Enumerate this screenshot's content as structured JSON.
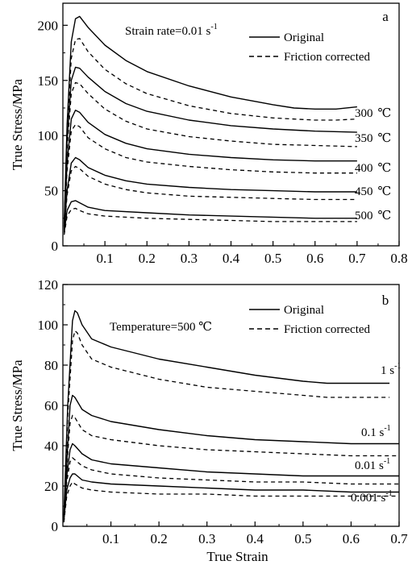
{
  "chart_data": [
    {
      "panel": "a",
      "type": "line",
      "annotation": "Strain rate=0.01 s",
      "annotation_sup": "-1",
      "xlabel": "",
      "ylabel": "True Stress/MPa",
      "xlim": [
        0,
        0.8
      ],
      "ylim": [
        0,
        220
      ],
      "xticks": [
        0.1,
        0.2,
        0.3,
        0.4,
        0.5,
        0.6,
        0.7,
        0.8
      ],
      "yticks": [
        0,
        50,
        100,
        150,
        200
      ],
      "legend": [
        "Original",
        "Friction corrected"
      ],
      "legend_position": "top-right",
      "series": [
        {
          "name": "300 ℃",
          "label": "300",
          "unit": "℃",
          "original": [
            [
              0.003,
              20
            ],
            [
              0.01,
              110
            ],
            [
              0.02,
              185
            ],
            [
              0.03,
              206
            ],
            [
              0.04,
              208
            ],
            [
              0.06,
              198
            ],
            [
              0.1,
              182
            ],
            [
              0.15,
              168
            ],
            [
              0.2,
              158
            ],
            [
              0.3,
              145
            ],
            [
              0.4,
              135
            ],
            [
              0.5,
              128
            ],
            [
              0.55,
              125
            ],
            [
              0.6,
              124
            ],
            [
              0.65,
              124
            ],
            [
              0.7,
              126
            ]
          ],
          "corrected": [
            [
              0.003,
              18
            ],
            [
              0.01,
              100
            ],
            [
              0.02,
              170
            ],
            [
              0.03,
              187
            ],
            [
              0.04,
              188
            ],
            [
              0.06,
              176
            ],
            [
              0.1,
              160
            ],
            [
              0.15,
              147
            ],
            [
              0.2,
              138
            ],
            [
              0.3,
              127
            ],
            [
              0.4,
              120
            ],
            [
              0.5,
              116
            ],
            [
              0.55,
              115
            ],
            [
              0.6,
              114
            ],
            [
              0.65,
              114
            ],
            [
              0.7,
              115
            ]
          ]
        },
        {
          "name": "350 ℃",
          "label": "350",
          "unit": "℃",
          "original": [
            [
              0.003,
              18
            ],
            [
              0.01,
              95
            ],
            [
              0.02,
              150
            ],
            [
              0.03,
              162
            ],
            [
              0.04,
              161
            ],
            [
              0.06,
              153
            ],
            [
              0.1,
              140
            ],
            [
              0.15,
              129
            ],
            [
              0.2,
              122
            ],
            [
              0.3,
              114
            ],
            [
              0.4,
              109
            ],
            [
              0.5,
              106
            ],
            [
              0.6,
              104
            ],
            [
              0.7,
              103
            ]
          ],
          "corrected": [
            [
              0.003,
              16
            ],
            [
              0.01,
              88
            ],
            [
              0.02,
              138
            ],
            [
              0.03,
              148
            ],
            [
              0.04,
              147
            ],
            [
              0.06,
              138
            ],
            [
              0.1,
              124
            ],
            [
              0.15,
              113
            ],
            [
              0.2,
              106
            ],
            [
              0.3,
              99
            ],
            [
              0.4,
              95
            ],
            [
              0.5,
              92
            ],
            [
              0.6,
              91
            ],
            [
              0.7,
              90
            ]
          ]
        },
        {
          "name": "400 ℃",
          "label": "400",
          "unit": "℃",
          "original": [
            [
              0.003,
              17
            ],
            [
              0.01,
              75
            ],
            [
              0.02,
              115
            ],
            [
              0.03,
              123
            ],
            [
              0.04,
              121
            ],
            [
              0.06,
              112
            ],
            [
              0.1,
              101
            ],
            [
              0.15,
              93
            ],
            [
              0.2,
              88
            ],
            [
              0.3,
              83
            ],
            [
              0.4,
              80
            ],
            [
              0.5,
              78
            ],
            [
              0.6,
              77
            ],
            [
              0.7,
              77
            ]
          ],
          "corrected": [
            [
              0.003,
              15
            ],
            [
              0.01,
              68
            ],
            [
              0.02,
              104
            ],
            [
              0.03,
              110
            ],
            [
              0.04,
              108
            ],
            [
              0.06,
              98
            ],
            [
              0.1,
              88
            ],
            [
              0.15,
              80
            ],
            [
              0.2,
              76
            ],
            [
              0.3,
              72
            ],
            [
              0.4,
              69
            ],
            [
              0.5,
              67
            ],
            [
              0.6,
              66
            ],
            [
              0.7,
              66
            ]
          ]
        },
        {
          "name": "450 ℃",
          "label": "450",
          "unit": "℃",
          "original": [
            [
              0.003,
              15
            ],
            [
              0.01,
              50
            ],
            [
              0.02,
              75
            ],
            [
              0.03,
              80
            ],
            [
              0.04,
              78
            ],
            [
              0.06,
              71
            ],
            [
              0.1,
              64
            ],
            [
              0.15,
              59
            ],
            [
              0.2,
              56
            ],
            [
              0.3,
              53
            ],
            [
              0.4,
              51
            ],
            [
              0.5,
              50
            ],
            [
              0.6,
              49
            ],
            [
              0.7,
              49
            ]
          ],
          "corrected": [
            [
              0.003,
              13
            ],
            [
              0.01,
              46
            ],
            [
              0.02,
              68
            ],
            [
              0.03,
              72
            ],
            [
              0.04,
              70
            ],
            [
              0.06,
              63
            ],
            [
              0.1,
              56
            ],
            [
              0.15,
              51
            ],
            [
              0.2,
              48
            ],
            [
              0.3,
              45
            ],
            [
              0.4,
              44
            ],
            [
              0.5,
              43
            ],
            [
              0.6,
              42
            ],
            [
              0.7,
              42
            ]
          ]
        },
        {
          "name": "500 ℃",
          "label": "500",
          "unit": "℃",
          "original": [
            [
              0.003,
              12
            ],
            [
              0.01,
              32
            ],
            [
              0.02,
              40
            ],
            [
              0.03,
              41
            ],
            [
              0.04,
              39
            ],
            [
              0.06,
              35
            ],
            [
              0.1,
              32
            ],
            [
              0.2,
              30
            ],
            [
              0.3,
              28
            ],
            [
              0.4,
              27
            ],
            [
              0.5,
              26
            ],
            [
              0.6,
              25
            ],
            [
              0.7,
              25
            ]
          ],
          "corrected": [
            [
              0.003,
              10
            ],
            [
              0.01,
              27
            ],
            [
              0.02,
              33
            ],
            [
              0.03,
              34
            ],
            [
              0.04,
              32
            ],
            [
              0.06,
              29
            ],
            [
              0.1,
              27
            ],
            [
              0.2,
              25
            ],
            [
              0.3,
              24
            ],
            [
              0.4,
              23
            ],
            [
              0.5,
              22
            ],
            [
              0.6,
              22
            ],
            [
              0.7,
              22
            ]
          ]
        }
      ]
    },
    {
      "panel": "b",
      "type": "line",
      "annotation": "Temperature=500 ℃",
      "xlabel": "True Strain",
      "ylabel": "True Stress/MPa",
      "xlim": [
        0,
        0.7
      ],
      "ylim": [
        0,
        120
      ],
      "xticks": [
        0.1,
        0.2,
        0.3,
        0.4,
        0.5,
        0.6,
        0.7
      ],
      "yticks": [
        0,
        20,
        40,
        60,
        80,
        100,
        120
      ],
      "legend": [
        "Original",
        "Friction corrected"
      ],
      "legend_position": "top-right",
      "series": [
        {
          "name": "1 s-1",
          "label": "1 s",
          "sup": "-1",
          "original": [
            [
              0.002,
              5
            ],
            [
              0.01,
              60
            ],
            [
              0.02,
              102
            ],
            [
              0.025,
              107
            ],
            [
              0.03,
              106
            ],
            [
              0.04,
              100
            ],
            [
              0.06,
              93
            ],
            [
              0.1,
              89
            ],
            [
              0.15,
              86
            ],
            [
              0.2,
              83
            ],
            [
              0.3,
              79
            ],
            [
              0.4,
              75
            ],
            [
              0.5,
              72
            ],
            [
              0.55,
              71
            ],
            [
              0.6,
              71
            ],
            [
              0.65,
              71
            ],
            [
              0.68,
              71
            ]
          ],
          "corrected": [
            [
              0.002,
              4
            ],
            [
              0.01,
              55
            ],
            [
              0.02,
              92
            ],
            [
              0.025,
              97
            ],
            [
              0.03,
              96
            ],
            [
              0.04,
              90
            ],
            [
              0.06,
              83
            ],
            [
              0.1,
              79
            ],
            [
              0.15,
              76
            ],
            [
              0.2,
              73
            ],
            [
              0.3,
              69
            ],
            [
              0.4,
              67
            ],
            [
              0.5,
              65
            ],
            [
              0.55,
              64
            ],
            [
              0.6,
              64
            ],
            [
              0.65,
              64
            ],
            [
              0.68,
              64
            ]
          ]
        },
        {
          "name": "0.1 s-1",
          "label": "0.1 s",
          "sup": "-1",
          "original": [
            [
              0.002,
              4
            ],
            [
              0.01,
              40
            ],
            [
              0.015,
              60
            ],
            [
              0.02,
              65
            ],
            [
              0.025,
              64
            ],
            [
              0.04,
              58
            ],
            [
              0.06,
              55
            ],
            [
              0.1,
              52
            ],
            [
              0.2,
              48
            ],
            [
              0.3,
              45
            ],
            [
              0.4,
              43
            ],
            [
              0.5,
              42
            ],
            [
              0.6,
              41
            ],
            [
              0.7,
              41
            ]
          ],
          "corrected": [
            [
              0.002,
              3
            ],
            [
              0.01,
              36
            ],
            [
              0.015,
              51
            ],
            [
              0.02,
              55
            ],
            [
              0.025,
              54
            ],
            [
              0.04,
              48
            ],
            [
              0.06,
              45
            ],
            [
              0.1,
              43
            ],
            [
              0.2,
              40
            ],
            [
              0.3,
              38
            ],
            [
              0.4,
              37
            ],
            [
              0.5,
              36
            ],
            [
              0.6,
              35
            ],
            [
              0.7,
              35
            ]
          ]
        },
        {
          "name": "0.01 s-1",
          "label": "0.01 s",
          "sup": "-1",
          "original": [
            [
              0.002,
              3
            ],
            [
              0.008,
              25
            ],
            [
              0.015,
              38
            ],
            [
              0.02,
              41
            ],
            [
              0.025,
              40
            ],
            [
              0.04,
              36
            ],
            [
              0.06,
              33
            ],
            [
              0.1,
              31
            ],
            [
              0.2,
              29
            ],
            [
              0.3,
              27
            ],
            [
              0.4,
              26
            ],
            [
              0.5,
              25
            ],
            [
              0.6,
              25
            ],
            [
              0.7,
              25
            ]
          ],
          "corrected": [
            [
              0.002,
              2
            ],
            [
              0.008,
              22
            ],
            [
              0.015,
              32
            ],
            [
              0.02,
              34
            ],
            [
              0.025,
              33
            ],
            [
              0.04,
              30
            ],
            [
              0.06,
              28
            ],
            [
              0.1,
              26
            ],
            [
              0.2,
              24
            ],
            [
              0.3,
              23
            ],
            [
              0.4,
              22
            ],
            [
              0.5,
              22
            ],
            [
              0.6,
              21
            ],
            [
              0.7,
              21
            ]
          ]
        },
        {
          "name": "0.001 s-1",
          "label": "0.001 s",
          "sup": "-1",
          "original": [
            [
              0.002,
              3
            ],
            [
              0.008,
              18
            ],
            [
              0.015,
              24
            ],
            [
              0.02,
              26
            ],
            [
              0.025,
              26
            ],
            [
              0.04,
              23
            ],
            [
              0.06,
              22
            ],
            [
              0.1,
              21
            ],
            [
              0.2,
              20
            ],
            [
              0.3,
              19
            ],
            [
              0.4,
              18
            ],
            [
              0.5,
              18
            ],
            [
              0.6,
              17
            ],
            [
              0.7,
              17
            ]
          ],
          "corrected": [
            [
              0.002,
              2
            ],
            [
              0.008,
              15
            ],
            [
              0.015,
              20
            ],
            [
              0.02,
              22
            ],
            [
              0.025,
              21
            ],
            [
              0.04,
              19
            ],
            [
              0.06,
              18
            ],
            [
              0.1,
              17
            ],
            [
              0.2,
              16
            ],
            [
              0.3,
              16
            ],
            [
              0.4,
              15
            ],
            [
              0.5,
              15
            ],
            [
              0.6,
              15
            ],
            [
              0.7,
              15
            ]
          ]
        }
      ]
    }
  ]
}
